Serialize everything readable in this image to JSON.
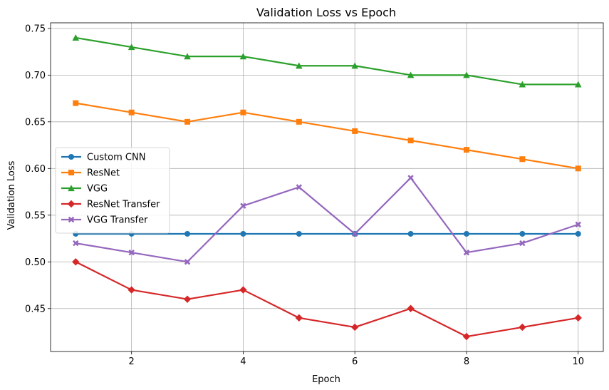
{
  "chart_data": {
    "type": "line",
    "title": "Validation Loss vs Epoch",
    "xlabel": "Epoch",
    "ylabel": "Validation Loss",
    "x": [
      1,
      2,
      3,
      4,
      5,
      6,
      7,
      8,
      9,
      10
    ],
    "xlim": [
      0.55,
      10.45
    ],
    "ylim": [
      0.404,
      0.756
    ],
    "xticks": [
      2,
      4,
      6,
      8,
      10
    ],
    "xtick_labels": [
      "2",
      "4",
      "6",
      "8",
      "10"
    ],
    "yticks": [
      0.45,
      0.5,
      0.55,
      0.6,
      0.65,
      0.7,
      0.75
    ],
    "ytick_labels": [
      "0.45",
      "0.50",
      "0.55",
      "0.60",
      "0.65",
      "0.70",
      "0.75"
    ],
    "grid": true,
    "legend_position": "center-left",
    "series": [
      {
        "name": "Custom CNN",
        "color": "#1f77b4",
        "marker": "circle",
        "values": [
          0.53,
          0.53,
          0.53,
          0.53,
          0.53,
          0.53,
          0.53,
          0.53,
          0.53,
          0.53
        ]
      },
      {
        "name": "ResNet",
        "color": "#ff7f0e",
        "marker": "square",
        "values": [
          0.67,
          0.66,
          0.65,
          0.66,
          0.65,
          0.64,
          0.63,
          0.62,
          0.61,
          0.6
        ]
      },
      {
        "name": "VGG",
        "color": "#2ca02c",
        "marker": "triangle",
        "values": [
          0.74,
          0.73,
          0.72,
          0.72,
          0.71,
          0.71,
          0.7,
          0.7,
          0.69,
          0.69
        ]
      },
      {
        "name": "ResNet Transfer",
        "color": "#d62728",
        "marker": "diamond",
        "values": [
          0.5,
          0.47,
          0.46,
          0.47,
          0.44,
          0.43,
          0.45,
          0.42,
          0.43,
          0.44
        ]
      },
      {
        "name": "VGG Transfer",
        "color": "#9467bd",
        "marker": "x",
        "values": [
          0.52,
          0.51,
          0.5,
          0.56,
          0.58,
          0.53,
          0.59,
          0.51,
          0.52,
          0.54
        ]
      }
    ]
  }
}
